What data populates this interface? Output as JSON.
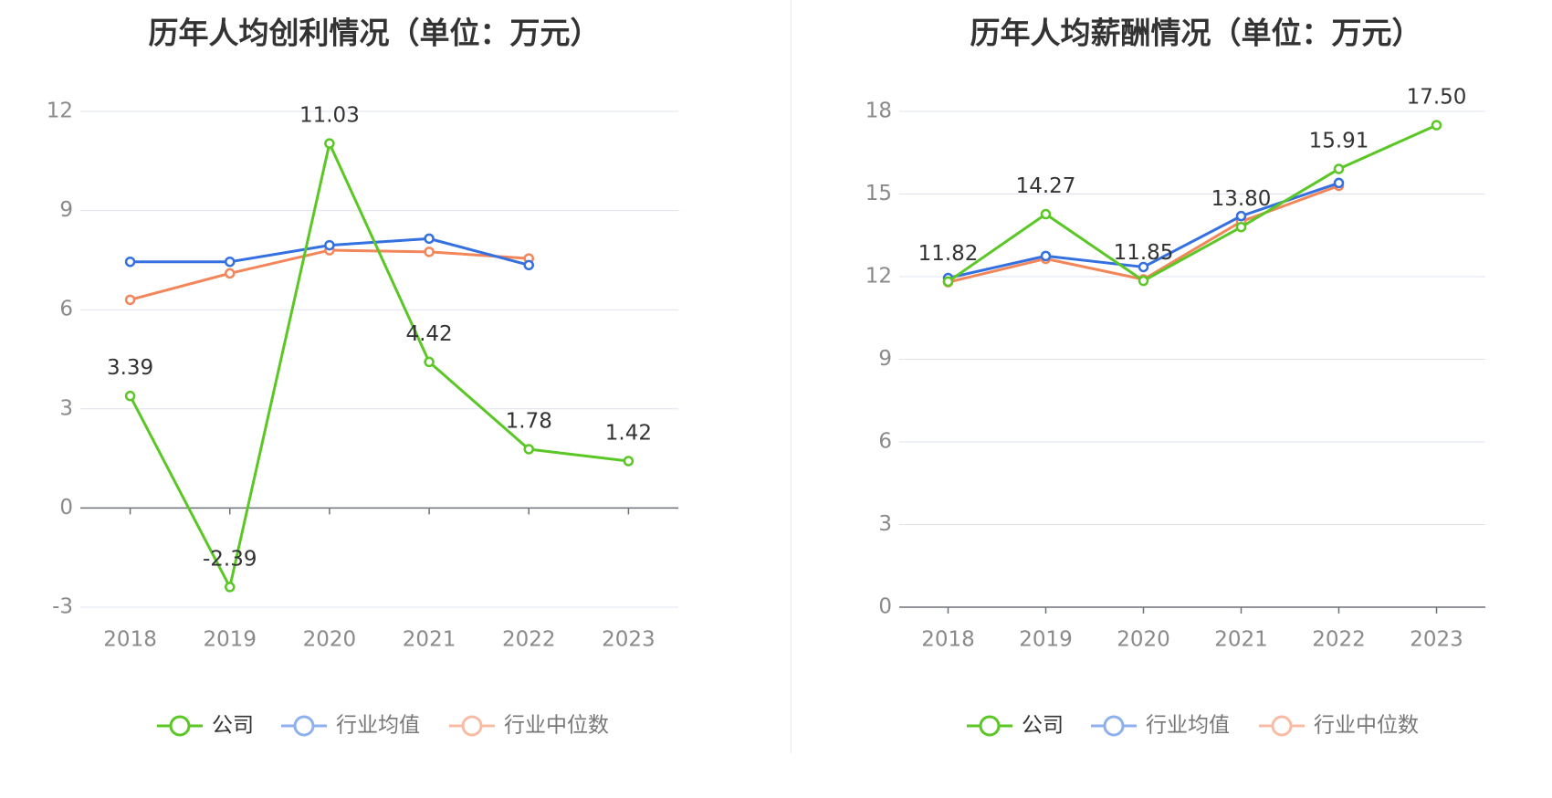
{
  "colors": {
    "company": "#5ac725",
    "industry_avg": "#3470e0",
    "industry_median": "#f2865a",
    "grid": "#dfe3f0",
    "axis": "#6e7079"
  },
  "chart_data": [
    {
      "type": "line",
      "title": "历年人均创利情况（单位：万元）",
      "categories": [
        "2018",
        "2019",
        "2020",
        "2021",
        "2022",
        "2023"
      ],
      "ylim": [
        -3,
        12
      ],
      "yticks": [
        -3,
        0,
        3,
        6,
        9,
        12
      ],
      "grid": true,
      "legend": "bottom",
      "series": [
        {
          "name": "公司",
          "key": "company",
          "values": [
            3.39,
            -2.39,
            11.03,
            4.42,
            1.78,
            1.42
          ],
          "labels": [
            "3.39",
            "-2.39",
            "11.03",
            "4.42",
            "1.78",
            "1.42"
          ]
        },
        {
          "name": "行业均值",
          "key": "industry_avg",
          "values": [
            7.45,
            7.45,
            7.95,
            8.15,
            7.35,
            null
          ]
        },
        {
          "name": "行业中位数",
          "key": "industry_median",
          "values": [
            6.3,
            7.1,
            7.8,
            7.75,
            7.55,
            null
          ]
        }
      ]
    },
    {
      "type": "line",
      "title": "历年人均薪酬情况（单位：万元）",
      "categories": [
        "2018",
        "2019",
        "2020",
        "2021",
        "2022",
        "2023"
      ],
      "ylim": [
        0,
        18
      ],
      "yticks": [
        0,
        3,
        6,
        9,
        12,
        15,
        18
      ],
      "grid": true,
      "legend": "bottom",
      "series": [
        {
          "name": "公司",
          "key": "company",
          "values": [
            11.82,
            14.27,
            11.85,
            13.8,
            15.91,
            17.5
          ],
          "labels": [
            "11.82",
            "14.27",
            "11.85",
            "13.80",
            "15.91",
            "17.50"
          ]
        },
        {
          "name": "行业均值",
          "key": "industry_avg",
          "values": [
            11.95,
            12.75,
            12.35,
            14.2,
            15.4,
            null
          ]
        },
        {
          "name": "行业中位数",
          "key": "industry_median",
          "values": [
            11.8,
            12.65,
            11.9,
            14.0,
            15.3,
            null
          ]
        }
      ]
    }
  ]
}
